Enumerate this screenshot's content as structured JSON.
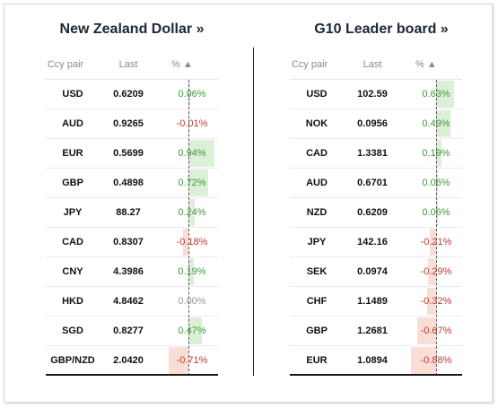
{
  "left": {
    "title": "New Zealand Dollar »",
    "headers": {
      "pair": "Ccy pair",
      "last": "Last",
      "pct": "% ▲"
    },
    "rows": [
      {
        "pair": "USD",
        "last": "0.6209",
        "pct": "0.06%",
        "value": 0.06
      },
      {
        "pair": "AUD",
        "last": "0.9265",
        "pct": "-0.01%",
        "value": -0.01
      },
      {
        "pair": "EUR",
        "last": "0.5699",
        "pct": "0.94%",
        "value": 0.94
      },
      {
        "pair": "GBP",
        "last": "0.4898",
        "pct": "0.72%",
        "value": 0.72
      },
      {
        "pair": "JPY",
        "last": "88.27",
        "pct": "0.24%",
        "value": 0.24
      },
      {
        "pair": "CAD",
        "last": "0.8307",
        "pct": "-0.18%",
        "value": -0.18
      },
      {
        "pair": "CNY",
        "last": "4.3986",
        "pct": "0.19%",
        "value": 0.19
      },
      {
        "pair": "HKD",
        "last": "4.8462",
        "pct": "0.00%",
        "value": 0.0
      },
      {
        "pair": "SGD",
        "last": "0.8277",
        "pct": "0.47%",
        "value": 0.47
      },
      {
        "pair": "GBP/NZD",
        "last": "2.0420",
        "pct": "-0.71%",
        "value": -0.71
      }
    ]
  },
  "right": {
    "title": "G10 Leader board »",
    "headers": {
      "pair": "Ccy pair",
      "last": "Last",
      "pct": "% ▲"
    },
    "rows": [
      {
        "pair": "USD",
        "last": "102.59",
        "pct": "0.63%",
        "value": 0.63
      },
      {
        "pair": "NOK",
        "last": "0.0956",
        "pct": "0.49%",
        "value": 0.49
      },
      {
        "pair": "CAD",
        "last": "1.3381",
        "pct": "0.19%",
        "value": 0.19
      },
      {
        "pair": "AUD",
        "last": "0.6701",
        "pct": "0.06%",
        "value": 0.06
      },
      {
        "pair": "NZD",
        "last": "0.6209",
        "pct": "0.06%",
        "value": 0.06
      },
      {
        "pair": "JPY",
        "last": "142.16",
        "pct": "-0.21%",
        "value": -0.21
      },
      {
        "pair": "SEK",
        "last": "0.0974",
        "pct": "-0.29%",
        "value": -0.29
      },
      {
        "pair": "CHF",
        "last": "1.1489",
        "pct": "-0.32%",
        "value": -0.32
      },
      {
        "pair": "GBP",
        "last": "1.2681",
        "pct": "-0.67%",
        "value": -0.67
      },
      {
        "pair": "EUR",
        "last": "1.0894",
        "pct": "-0.88%",
        "value": -0.88
      }
    ]
  },
  "colors": {
    "positive": "#3f9a3a",
    "negative": "#c23a2e",
    "positive_bar": "#dcefd7",
    "negative_bar": "#f9ded6"
  }
}
